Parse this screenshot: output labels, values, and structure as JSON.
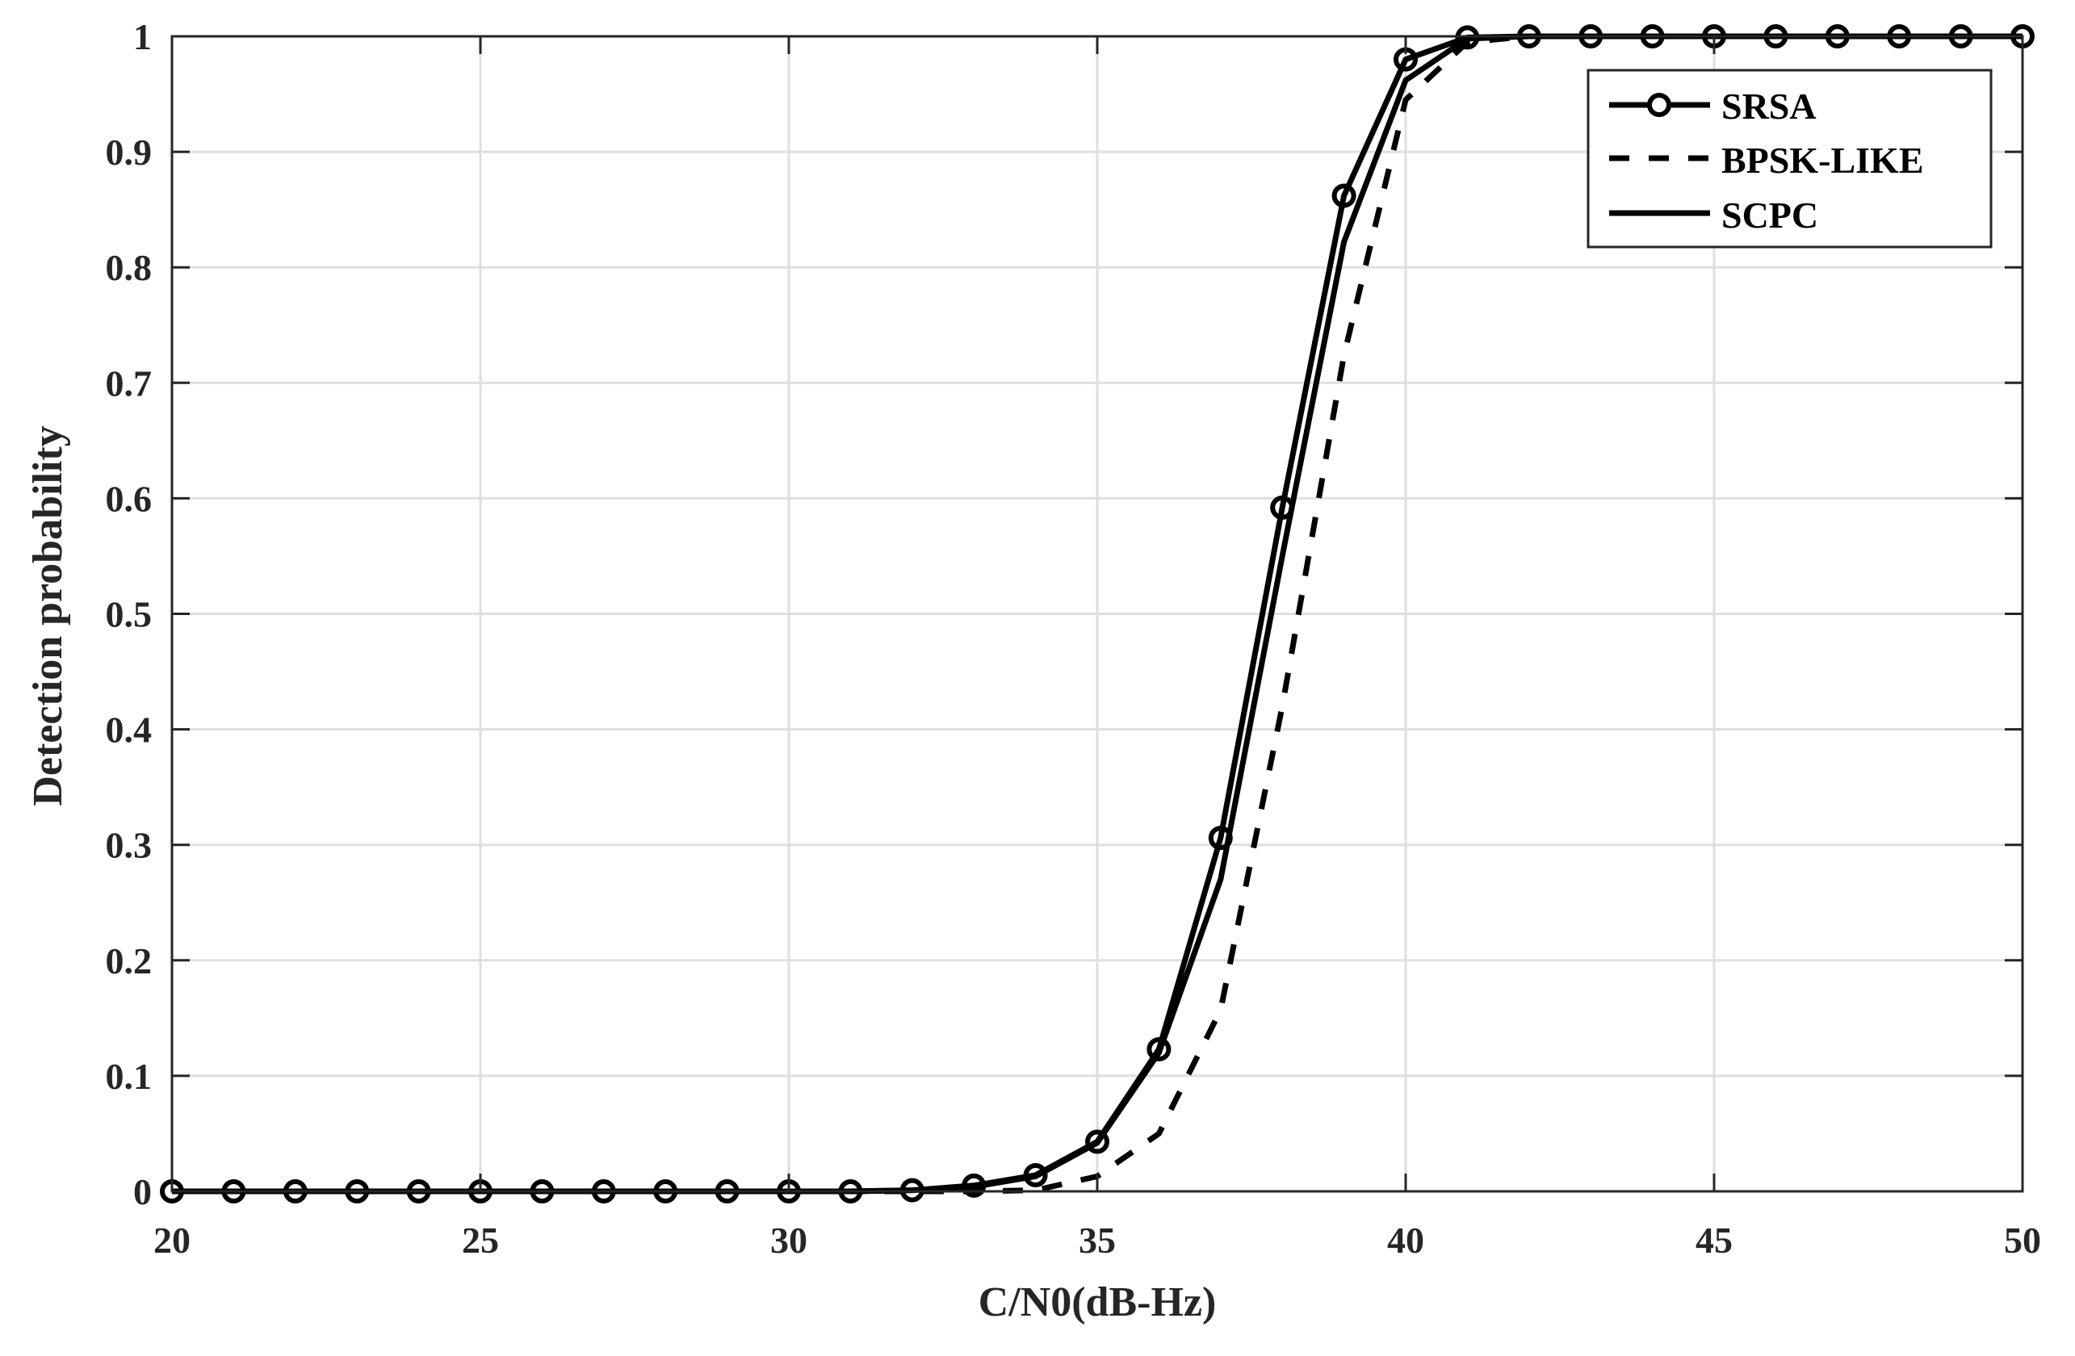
{
  "chart_data": {
    "type": "line",
    "title": "",
    "xlabel": "C/N0(dB-Hz)",
    "ylabel": "Detection probability",
    "xlim": [
      20,
      50
    ],
    "ylim": [
      0,
      1
    ],
    "grid": true,
    "legend_position": "upper right",
    "x_ticks": [
      20,
      25,
      30,
      35,
      40,
      45,
      50
    ],
    "x_tick_labels": [
      "20",
      "25",
      "30",
      "35",
      "40",
      "45",
      "50"
    ],
    "y_ticks": [
      0,
      0.1,
      0.2,
      0.3,
      0.4,
      0.5,
      0.6,
      0.7,
      0.8,
      0.9,
      1
    ],
    "y_tick_labels": [
      "0",
      "0.1",
      "0.2",
      "0.3",
      "0.4",
      "0.5",
      "0.6",
      "0.7",
      "0.8",
      "0.9",
      "1"
    ],
    "x": [
      20,
      21,
      22,
      23,
      24,
      25,
      26,
      27,
      28,
      29,
      30,
      31,
      32,
      33,
      34,
      35,
      36,
      37,
      38,
      39,
      40,
      41,
      42,
      43,
      44,
      45,
      46,
      47,
      48,
      49,
      50
    ],
    "series": [
      {
        "name": "SRSA",
        "style": "solid",
        "marker": "circle",
        "color": "#000000",
        "values": [
          0,
          0,
          0,
          0,
          0,
          0,
          0,
          0,
          0,
          0,
          0,
          0,
          0.001,
          0.005,
          0.014,
          0.043,
          0.123,
          0.306,
          0.592,
          0.862,
          0.98,
          0.999,
          1,
          1,
          1,
          1,
          1,
          1,
          1,
          1,
          1
        ]
      },
      {
        "name": "BPSK-LIKE",
        "style": "dashed",
        "marker": "none",
        "color": "#000000",
        "values": [
          0,
          0,
          0,
          0,
          0,
          0,
          0,
          0,
          0,
          0,
          0,
          0,
          0,
          0,
          0.001,
          0.013,
          0.05,
          0.157,
          0.42,
          0.724,
          0.945,
          0.995,
          1,
          1,
          1,
          1,
          1,
          1,
          1,
          1,
          1
        ]
      },
      {
        "name": "SCPC",
        "style": "solid",
        "marker": "none",
        "color": "#000000",
        "values": [
          0,
          0,
          0,
          0,
          0,
          0,
          0,
          0,
          0,
          0,
          0,
          0,
          0.001,
          0.004,
          0.013,
          0.042,
          0.12,
          0.27,
          0.55,
          0.822,
          0.962,
          0.998,
          1,
          1,
          1,
          1,
          1,
          1,
          1,
          1,
          1
        ]
      }
    ]
  },
  "colors": {
    "axis": "#262626",
    "grid": "#dfdfdf",
    "line": "#000000",
    "background": "#ffffff"
  }
}
